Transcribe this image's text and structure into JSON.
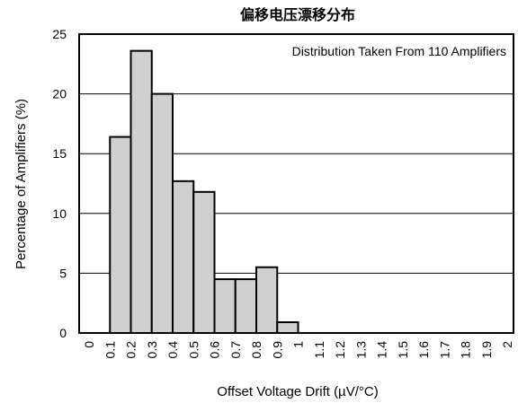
{
  "chart_data": {
    "type": "bar",
    "title": "偏移电压漂移分布",
    "xlabel": "Offset Voltage Drift (µV/°C)",
    "ylabel": "Percentage of Amplifiers (%)",
    "annotation": "Distribution Taken From 110 Amplifiers",
    "x_ticks": [
      "0",
      "0.1",
      "0.2",
      "0.3",
      "0.4",
      "0.5",
      "0.6",
      "0.7",
      "0.8",
      "0.9",
      "1",
      "1.1",
      "1.2",
      "1.3",
      "1.4",
      "1.5",
      "1.6",
      "1.7",
      "1.8",
      "1.9",
      "2"
    ],
    "y_ticks": [
      "0",
      "5",
      "10",
      "15",
      "20",
      "25"
    ],
    "xlim": [
      0,
      2
    ],
    "ylim": [
      0,
      25
    ],
    "grid": "horizontal",
    "bins": [
      {
        "x0": 0.1,
        "x1": 0.2,
        "value": 16.4
      },
      {
        "x0": 0.2,
        "x1": 0.3,
        "value": 23.6
      },
      {
        "x0": 0.3,
        "x1": 0.4,
        "value": 20.0
      },
      {
        "x0": 0.4,
        "x1": 0.5,
        "value": 12.7
      },
      {
        "x0": 0.5,
        "x1": 0.6,
        "value": 11.8
      },
      {
        "x0": 0.6,
        "x1": 0.7,
        "value": 4.5
      },
      {
        "x0": 0.7,
        "x1": 0.8,
        "value": 4.5
      },
      {
        "x0": 0.8,
        "x1": 0.9,
        "value": 5.5
      },
      {
        "x0": 0.9,
        "x1": 1.0,
        "value": 0.9
      }
    ]
  }
}
